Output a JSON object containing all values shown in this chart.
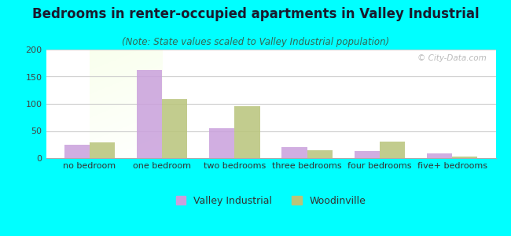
{
  "title": "Bedrooms in renter-occupied apartments in Valley Industrial",
  "subtitle": "(Note: State values scaled to Valley Industrial population)",
  "categories": [
    "no bedroom",
    "one bedroom",
    "two bedrooms",
    "three bedrooms",
    "four bedrooms",
    "five+ bedrooms"
  ],
  "valley_industrial": [
    25,
    162,
    55,
    21,
    13,
    8
  ],
  "woodinville": [
    29,
    108,
    95,
    15,
    31,
    3
  ],
  "vi_color": "#c9a0dc",
  "wood_color": "#b8c47a",
  "background_color": "#00ffff",
  "ylim": [
    0,
    200
  ],
  "yticks": [
    0,
    50,
    100,
    150,
    200
  ],
  "title_fontsize": 12,
  "subtitle_fontsize": 8.5,
  "tick_label_fontsize": 8,
  "legend_fontsize": 9,
  "bar_width": 0.35,
  "legend_vi": "Valley Industrial",
  "legend_wood": "Woodinville"
}
